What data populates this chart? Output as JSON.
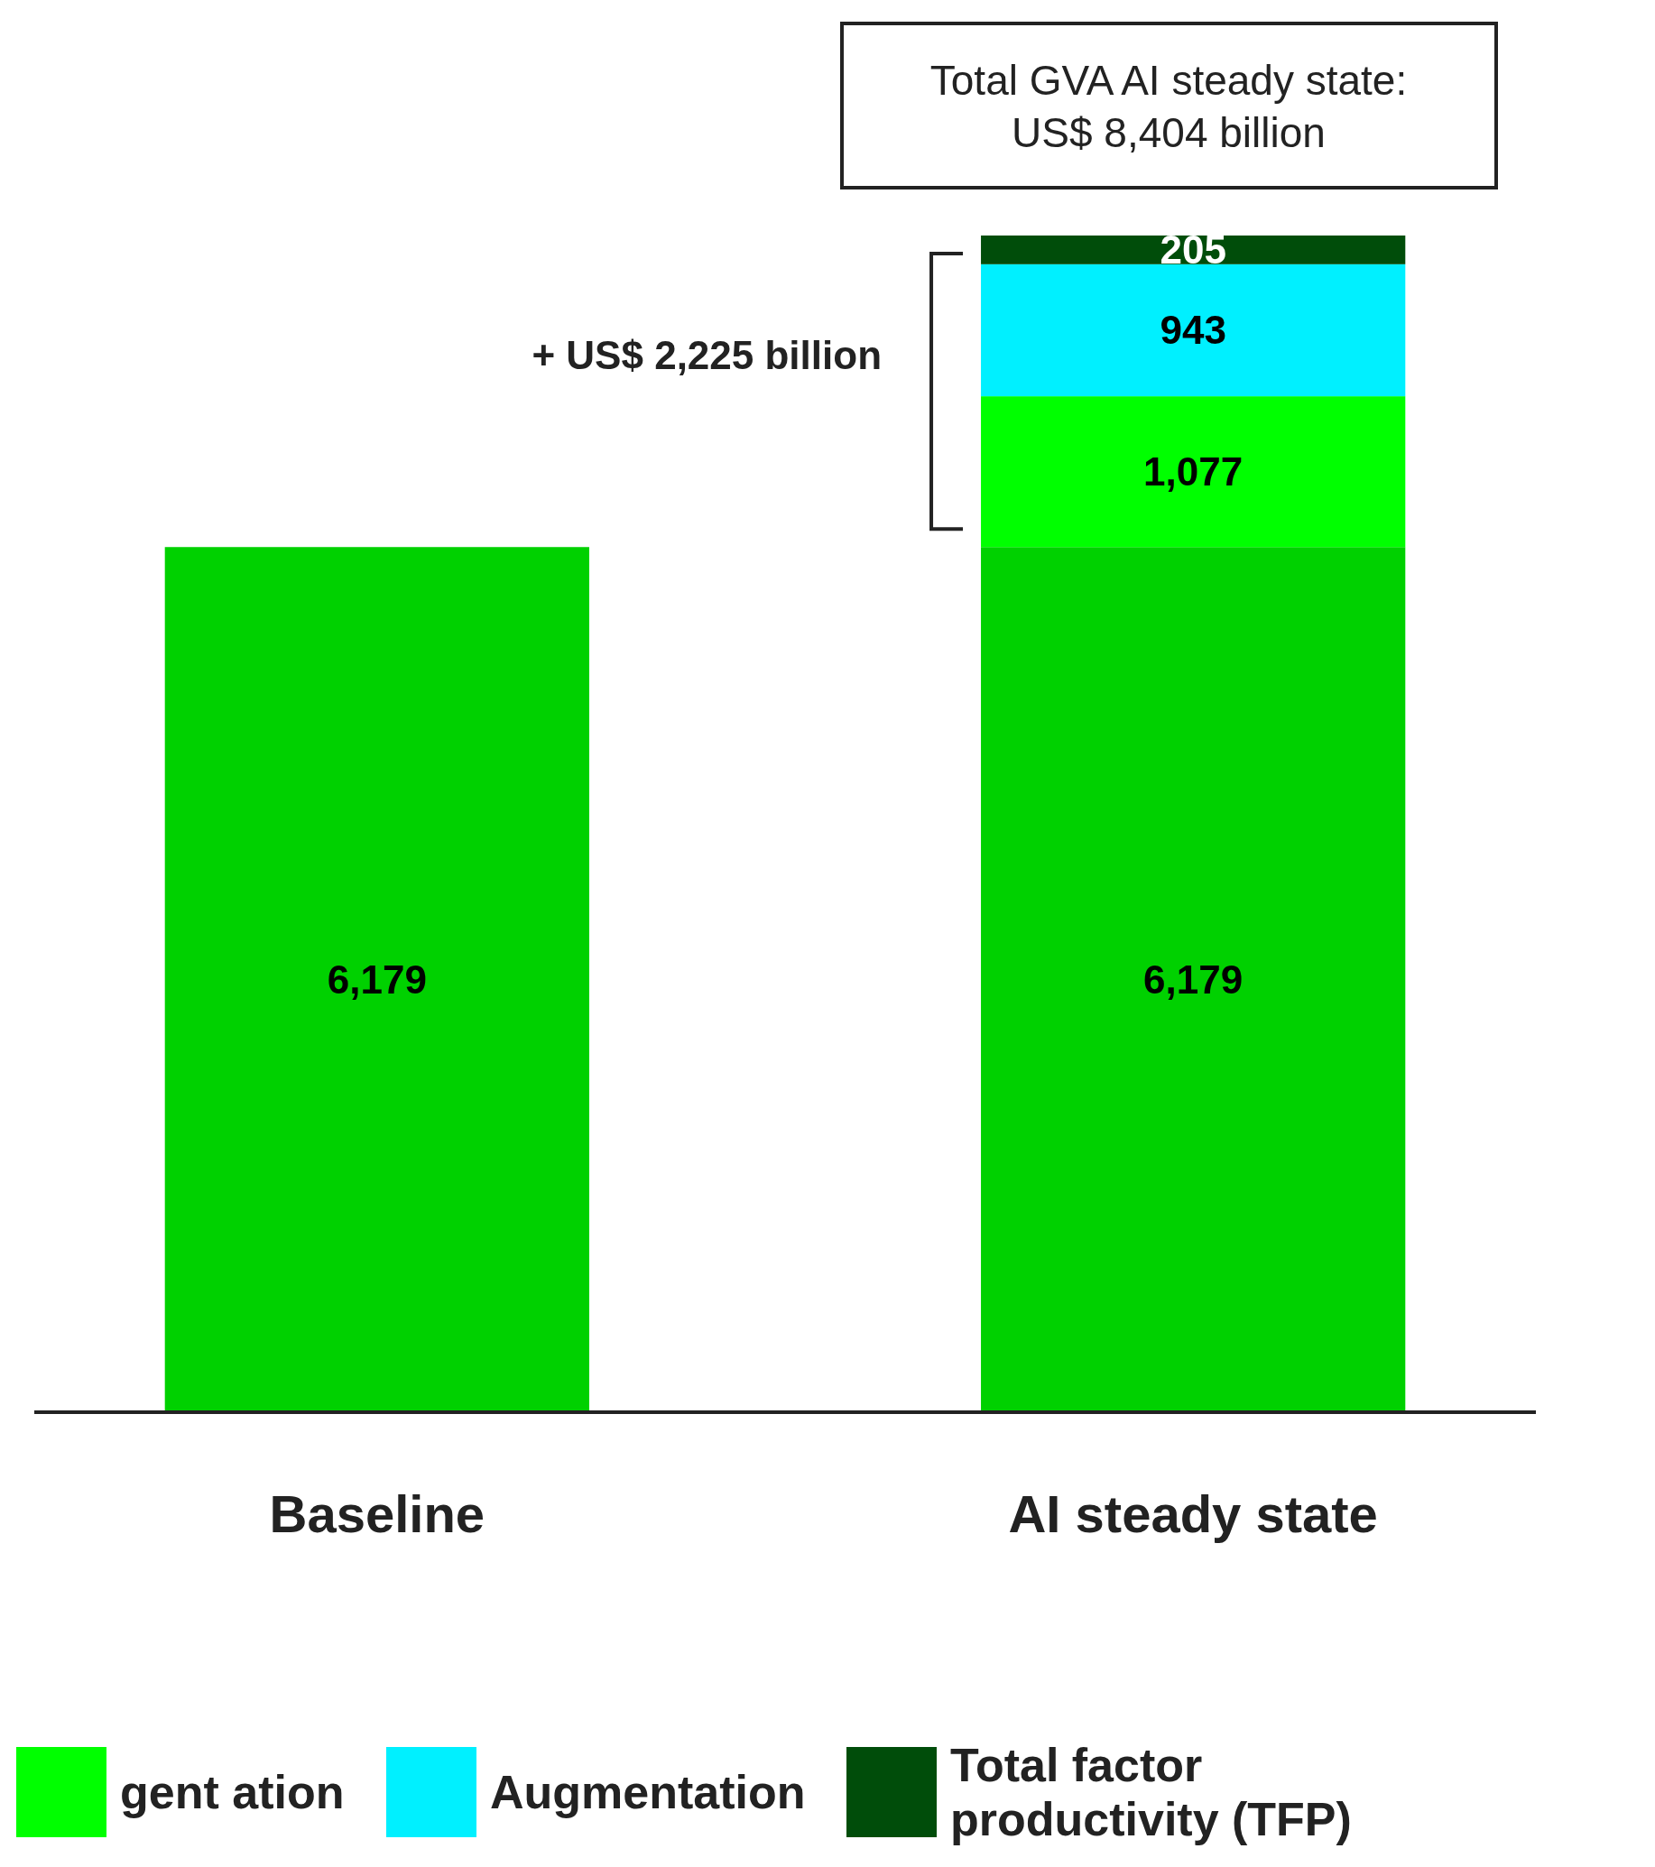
{
  "chart_data": {
    "type": "bar",
    "stacked": true,
    "categories": [
      "Baseline",
      "AI steady state"
    ],
    "series": [
      {
        "color": "#00d100",
        "values": [
          6179,
          6179
        ],
        "value_labels": [
          "6,179",
          "6,179"
        ]
      },
      {
        "name": "gent ation",
        "color": "#00ff00",
        "values": [
          null,
          1077
        ],
        "value_labels": [
          null,
          "1,077"
        ]
      },
      {
        "name": "Augmentation",
        "color": "#00f0ff",
        "values": [
          null,
          943
        ],
        "value_labels": [
          null,
          "943"
        ]
      },
      {
        "name": "Total factor productivity (TFP)",
        "color": "#004d0a",
        "values": [
          null,
          205
        ],
        "value_labels": [
          null,
          "205"
        ]
      }
    ],
    "legend": "bottom",
    "annotations": [
      "Total GVA AI steady state:\nUS$ 8,404 billion",
      "+ US$ 2,225 billion"
    ]
  }
}
